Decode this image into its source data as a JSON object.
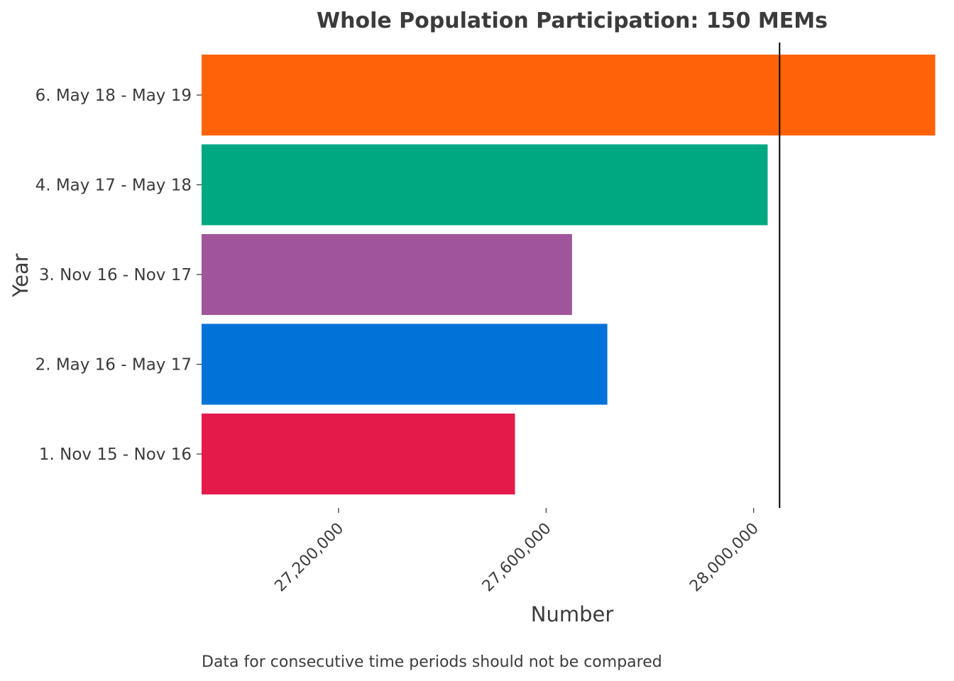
{
  "chart_data": {
    "type": "bar",
    "orientation": "horizontal",
    "title": "Whole Population Participation: 150 MEMs",
    "xlabel": "Number",
    "ylabel": "Year",
    "caption": "Data for consecutive time periods should not be compared",
    "categories": [
      "1. Nov 15 - Nov 16",
      "2. May 16 - May 17",
      "3. Nov 16 - Nov 17",
      "4. May 17 - May 18",
      "6. May 18 - May 19"
    ],
    "values": [
      27540000,
      27718000,
      27650000,
      28027000,
      28350000
    ],
    "colors": [
      "#E31A4A",
      "#0072D8",
      "#A0559B",
      "#00A882",
      "#FF6208"
    ],
    "x_ticks": [
      27200000,
      27600000,
      28000000
    ],
    "x_tick_labels": [
      "27,200,000",
      "27,600,000",
      "28,000,000"
    ],
    "xlim": [
      26936000,
      28367000
    ],
    "reference_line": 28050000,
    "grid": false,
    "legend": "none"
  }
}
